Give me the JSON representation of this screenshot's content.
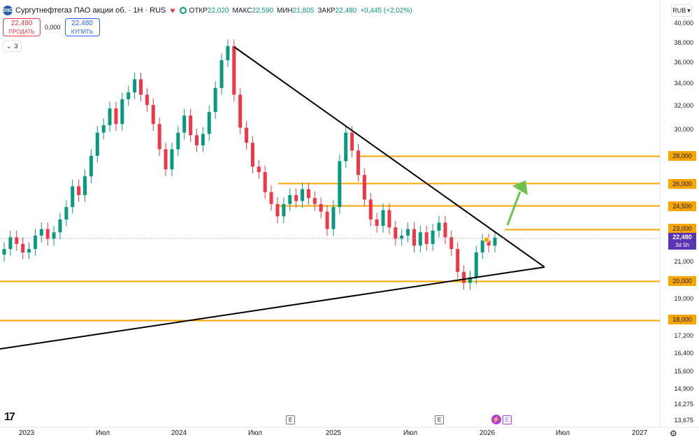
{
  "legend": {
    "logo_text": "SNG",
    "title": "Сургутнефтегаз ПАО акции об. · 1Н · RUS",
    "heart_glyph": "♥",
    "open_label": "ОТКР",
    "open_value": "22,020",
    "high_label": "МАКС",
    "high_value": "22,590",
    "low_label": "МИН",
    "low_value": "21,805",
    "close_label": "ЗАКР",
    "close_value": "22,480",
    "change_value": "+0,445 (+2,02%)"
  },
  "trade": {
    "sell_price": "22,480",
    "sell_label": "ПРОДАТЬ",
    "spread": "0,000",
    "buy_price": "22,480",
    "buy_label": "КУПИТЬ"
  },
  "indicators": {
    "chevron": "⌄",
    "count": "3"
  },
  "currency": {
    "label": "RUB",
    "chevron": "▾"
  },
  "price_scale": {
    "ticks": [
      {
        "label": "40,000",
        "value": 40000
      },
      {
        "label": "38,000",
        "value": 38000
      },
      {
        "label": "36,000",
        "value": 36000
      },
      {
        "label": "34,000",
        "value": 34000
      },
      {
        "label": "32,000",
        "value": 32000
      },
      {
        "label": "30,000",
        "value": 30000
      },
      {
        "label": "21,000",
        "value": 21000
      },
      {
        "label": "19,000",
        "value": 19000
      },
      {
        "label": "17,200",
        "value": 17200
      },
      {
        "label": "16,400",
        "value": 16400
      },
      {
        "label": "15,600",
        "value": 15600
      },
      {
        "label": "14,900",
        "value": 14900
      },
      {
        "label": "14,275",
        "value": 14275
      },
      {
        "label": "13,675",
        "value": 13675
      }
    ],
    "line_labels": [
      "28,000",
      "26,000",
      "24,500",
      "23,000",
      "20,000",
      "18,000"
    ],
    "last_price": "22,480",
    "countdown": "3d 5h"
  },
  "time_axis": {
    "labels": [
      "2023",
      "Июл",
      "2024",
      "Июл",
      "2025",
      "Июл",
      "2026",
      "Июл",
      "2027"
    ]
  },
  "events": {
    "marker_e": "E",
    "lightning": "⚡"
  },
  "branding": {
    "logo_text": "17",
    "settings_glyph": "⚙"
  },
  "colors": {
    "up": "#089981",
    "down": "#f23645",
    "level_line": "#f7a600",
    "trendline": "#000000",
    "arrow": "#6cc24a",
    "last_price_bg": "#5b34b5"
  },
  "chart_data": {
    "type": "candlestick",
    "symbol": "Сургутнефтегаз ПАО акции об.",
    "y_scale": "log",
    "x_axis_labels": [
      "2023",
      "Июл",
      "2024",
      "Июл",
      "2025",
      "Июл",
      "2026",
      "Июл",
      "2027"
    ],
    "horizontal_levels": [
      28000,
      26000,
      24500,
      23000,
      20000,
      18000
    ],
    "last_price": 22480,
    "trendlines": [
      {
        "from": {
          "date": "2024-04",
          "price": 37600
        },
        "to": {
          "date": "2026-06",
          "price": 20700
        }
      },
      {
        "from": {
          "date": "2022-11",
          "price": 16700
        },
        "to": {
          "date": "2026-06",
          "price": 20700
        }
      }
    ],
    "arrow": {
      "direction": "up",
      "from_price": 23000,
      "to_price": 25800
    },
    "closes": [
      21800,
      22500,
      22100,
      21600,
      21800,
      22600,
      23000,
      22400,
      22800,
      23600,
      24400,
      25800,
      25200,
      26500,
      28000,
      29800,
      30400,
      31800,
      30500,
      32600,
      33200,
      34400,
      33000,
      32100,
      30500,
      28500,
      27000,
      28500,
      29800,
      31200,
      29600,
      28800,
      29700,
      31500,
      33600,
      36200,
      37600,
      33000,
      30200,
      29000,
      27200,
      26800,
      25400,
      24600,
      23800,
      24600,
      25200,
      24800,
      25600,
      25000,
      24600,
      24100,
      23000,
      24400,
      27600,
      29800,
      28400,
      26600,
      24900,
      23600,
      23200,
      24200,
      23100,
      22400,
      22600,
      23000,
      22000,
      22800,
      22100,
      22900,
      23400,
      22500,
      21800,
      20500,
      19900,
      20200,
      21600,
      22300,
      22000,
      22480
    ]
  }
}
